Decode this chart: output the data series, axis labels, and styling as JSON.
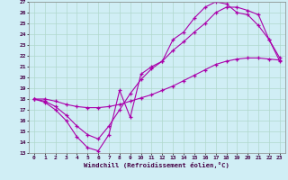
{
  "xlabel": "Windchill (Refroidissement éolien,°C)",
  "xlim": [
    -0.5,
    23.5
  ],
  "ylim": [
    13,
    27
  ],
  "yticks": [
    13,
    14,
    15,
    16,
    17,
    18,
    19,
    20,
    21,
    22,
    23,
    24,
    25,
    26,
    27
  ],
  "xticks": [
    0,
    1,
    2,
    3,
    4,
    5,
    6,
    7,
    8,
    9,
    10,
    11,
    12,
    13,
    14,
    15,
    16,
    17,
    18,
    19,
    20,
    21,
    22,
    23
  ],
  "bg_color": "#d0eef5",
  "line_color": "#aa00aa",
  "grid_color": "#b0d8cc",
  "line1_x": [
    0,
    1,
    2,
    3,
    4,
    5,
    6,
    7,
    8,
    9,
    10,
    11,
    12,
    13,
    14,
    15,
    16,
    17,
    18,
    19,
    20,
    21,
    22,
    23
  ],
  "line1_y": [
    18,
    17.7,
    17.0,
    16.0,
    14.5,
    13.5,
    13.2,
    14.7,
    18.8,
    16.3,
    20.3,
    21.0,
    21.5,
    23.5,
    24.2,
    25.5,
    26.5,
    27.0,
    26.8,
    26.0,
    25.8,
    24.8,
    23.5,
    21.8
  ],
  "line2_x": [
    0,
    1,
    2,
    3,
    4,
    5,
    6,
    7,
    8,
    9,
    10,
    11,
    12,
    13,
    14,
    15,
    16,
    17,
    18,
    19,
    20,
    21,
    22,
    23
  ],
  "line2_y": [
    18,
    18.0,
    17.8,
    17.5,
    17.3,
    17.2,
    17.2,
    17.3,
    17.5,
    17.8,
    18.1,
    18.4,
    18.8,
    19.2,
    19.7,
    20.2,
    20.7,
    21.2,
    21.5,
    21.7,
    21.8,
    21.8,
    21.7,
    21.6
  ],
  "line3_x": [
    0,
    1,
    2,
    3,
    4,
    5,
    6,
    7,
    8,
    9,
    10,
    11,
    12,
    13,
    14,
    15,
    16,
    17,
    18,
    19,
    20,
    21,
    22,
    23
  ],
  "line3_y": [
    18,
    17.8,
    17.3,
    16.5,
    15.5,
    14.7,
    14.3,
    15.5,
    17.0,
    18.5,
    19.8,
    20.8,
    21.5,
    22.5,
    23.3,
    24.2,
    25.0,
    26.0,
    26.5,
    26.5,
    26.2,
    25.8,
    23.5,
    21.5
  ]
}
